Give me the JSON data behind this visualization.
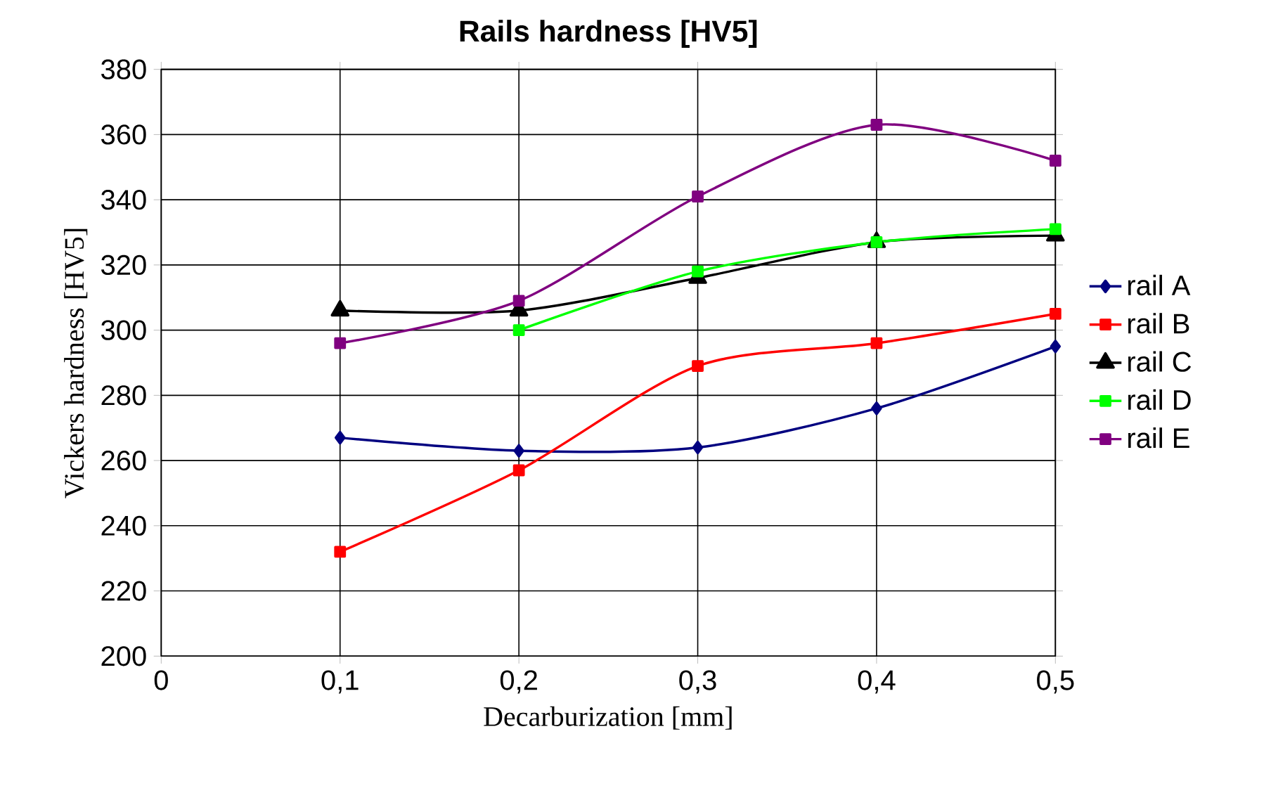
{
  "chart_data": {
    "type": "line",
    "title": "Rails hardness [HV5]",
    "xlabel": "Decarburization [mm]",
    "ylabel": "Vickers hardness [HV5]",
    "x": [
      0.1,
      0.2,
      0.3,
      0.4,
      0.5
    ],
    "series": [
      {
        "name": "rail A",
        "color": "#000080",
        "marker": "diamond",
        "values": [
          267,
          263,
          264,
          276,
          295
        ]
      },
      {
        "name": "rail B",
        "color": "#ff0000",
        "marker": "square",
        "values": [
          232,
          257,
          289,
          296,
          305
        ]
      },
      {
        "name": "rail C",
        "color": "#000000",
        "marker": "triangle",
        "values": [
          306,
          306,
          316,
          327,
          329
        ]
      },
      {
        "name": "rail D",
        "color": "#00ff00",
        "marker": "square",
        "values": [
          null,
          300,
          318,
          327,
          331
        ]
      },
      {
        "name": "rail E",
        "color": "#800080",
        "marker": "square",
        "values": [
          296,
          309,
          341,
          363,
          352
        ]
      }
    ],
    "xlim": [
      0,
      0.5
    ],
    "xticks": [
      0,
      {
        "value": 0.1,
        "label": "0,1"
      },
      {
        "value": 0.2,
        "label": "0,2"
      },
      {
        "value": 0.3,
        "label": "0,3"
      },
      {
        "value": 0.4,
        "label": "0,4"
      },
      {
        "value": 0.5,
        "label": "0,5"
      }
    ],
    "ylim": [
      200,
      380
    ],
    "yticks": [
      200,
      220,
      240,
      260,
      280,
      300,
      320,
      340,
      360,
      380
    ],
    "grid": true,
    "legend": "right",
    "line_style": "solid"
  }
}
